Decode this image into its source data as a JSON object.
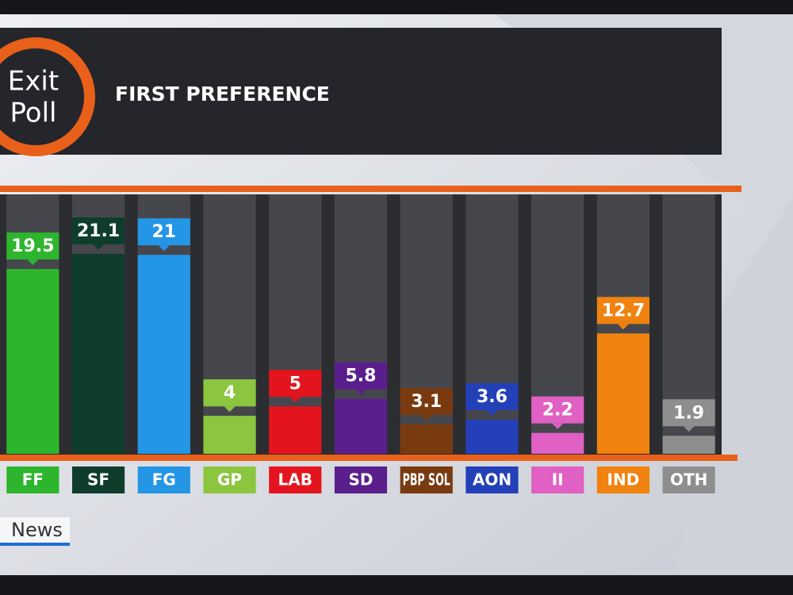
{
  "logo": {
    "line1": "Exit",
    "line2": "Poll"
  },
  "network": "News",
  "chart_data": {
    "type": "bar",
    "title": "FIRST PREFERENCE",
    "categories": [
      "FF",
      "SF",
      "FG",
      "GP",
      "LAB",
      "SD",
      "PBP SOL",
      "AON",
      "II",
      "IND",
      "OTH"
    ],
    "values": [
      19.5,
      21.1,
      21,
      4,
      5,
      5.8,
      3.1,
      3.6,
      2.2,
      12.7,
      1.9
    ],
    "colors": [
      "#2db52d",
      "#0f3d2c",
      "#2496e6",
      "#8cc63f",
      "#e3141e",
      "#5a1f8c",
      "#7a3a10",
      "#2440b8",
      "#e060c4",
      "#f0820f",
      "#8e8e8e"
    ]
  }
}
